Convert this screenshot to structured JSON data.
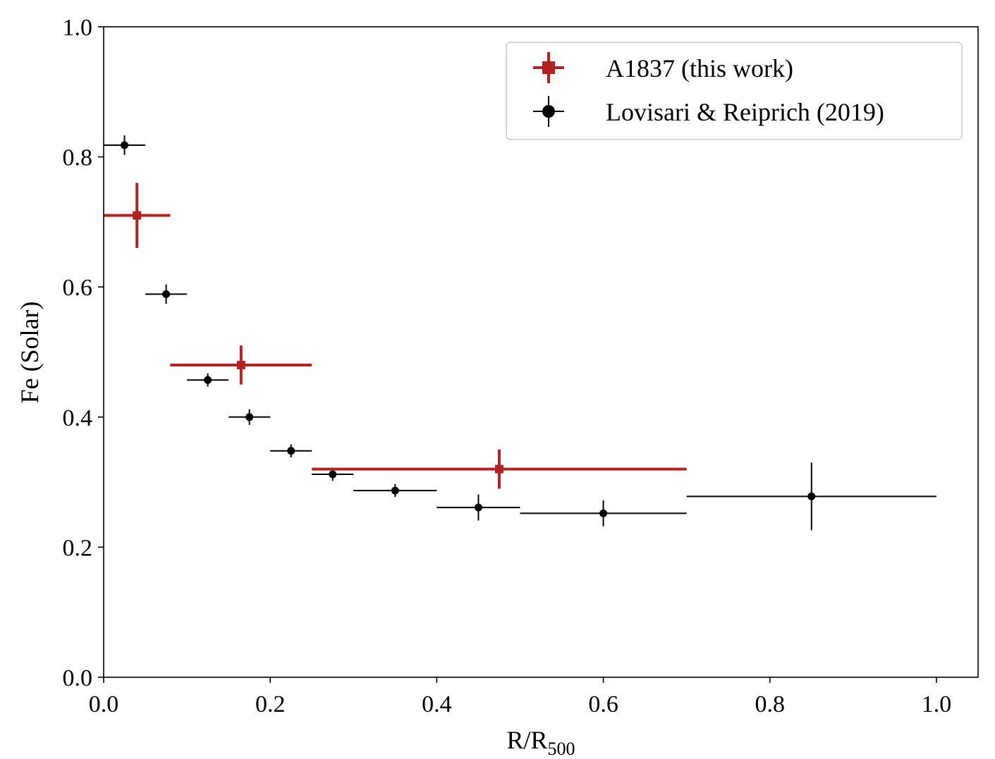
{
  "chart_data": {
    "type": "scatter",
    "title": "",
    "xlabel": "R/R",
    "xlabel_sub": "500",
    "ylabel": "Fe (Solar)",
    "xlim": [
      0.0,
      1.05
    ],
    "ylim": [
      0.0,
      1.0
    ],
    "xticks": [
      0.0,
      0.2,
      0.4,
      0.6,
      0.8,
      1.0
    ],
    "xtick_labels": [
      "0.0",
      "0.2",
      "0.4",
      "0.6",
      "0.8",
      "1.0"
    ],
    "yticks": [
      0.0,
      0.2,
      0.4,
      0.6,
      0.8,
      1.0
    ],
    "ytick_labels": [
      "0.0",
      "0.2",
      "0.4",
      "0.6",
      "0.8",
      "1.0"
    ],
    "grid": false,
    "legend_position": "top-right",
    "series": [
      {
        "name": "A1837 (this work)",
        "color": "#b22222",
        "marker": "square",
        "points": [
          {
            "x": 0.04,
            "y": 0.71,
            "xerr": [
              0.04,
              0.04
            ],
            "yerr": [
              0.05,
              0.05
            ]
          },
          {
            "x": 0.165,
            "y": 0.48,
            "xerr": [
              0.085,
              0.085
            ],
            "yerr": [
              0.03,
              0.03
            ]
          },
          {
            "x": 0.475,
            "y": 0.32,
            "xerr": [
              0.225,
              0.225
            ],
            "yerr": [
              0.03,
              0.03
            ]
          }
        ]
      },
      {
        "name": "Lovisari & Reiprich (2019)",
        "color": "#000000",
        "marker": "circle",
        "points": [
          {
            "x": 0.025,
            "y": 0.818,
            "xerr": [
              0.025,
              0.025
            ],
            "yerr": [
              0.015,
              0.015
            ]
          },
          {
            "x": 0.075,
            "y": 0.589,
            "xerr": [
              0.025,
              0.025
            ],
            "yerr": [
              0.015,
              0.015
            ]
          },
          {
            "x": 0.125,
            "y": 0.457,
            "xerr": [
              0.025,
              0.025
            ],
            "yerr": [
              0.01,
              0.01
            ]
          },
          {
            "x": 0.175,
            "y": 0.4,
            "xerr": [
              0.025,
              0.025
            ],
            "yerr": [
              0.012,
              0.012
            ]
          },
          {
            "x": 0.225,
            "y": 0.348,
            "xerr": [
              0.025,
              0.025
            ],
            "yerr": [
              0.01,
              0.01
            ]
          },
          {
            "x": 0.275,
            "y": 0.312,
            "xerr": [
              0.025,
              0.025
            ],
            "yerr": [
              0.01,
              0.01
            ]
          },
          {
            "x": 0.35,
            "y": 0.287,
            "xerr": [
              0.05,
              0.05
            ],
            "yerr": [
              0.01,
              0.01
            ]
          },
          {
            "x": 0.45,
            "y": 0.261,
            "xerr": [
              0.05,
              0.05
            ],
            "yerr": [
              0.02,
              0.02
            ]
          },
          {
            "x": 0.6,
            "y": 0.252,
            "xerr": [
              0.1,
              0.1
            ],
            "yerr": [
              0.02,
              0.02
            ]
          },
          {
            "x": 0.85,
            "y": 0.278,
            "xerr": [
              0.15,
              0.15
            ],
            "yerr": [
              0.052,
              0.052
            ]
          }
        ]
      }
    ]
  }
}
